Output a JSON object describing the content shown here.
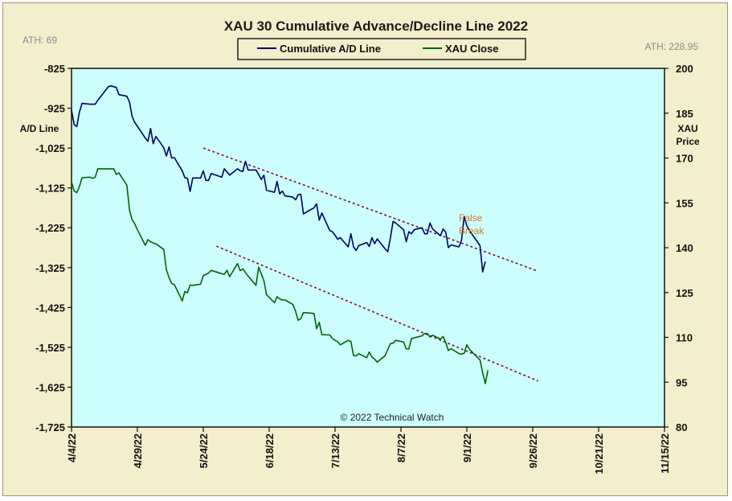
{
  "chart_data": {
    "type": "line",
    "title": "XAU 30 Cumulative Advance/Decline Line 2022",
    "ath_left": "ATH: 69",
    "ath_right": "ATH: 228.95",
    "ylabel_left": "A/D Line",
    "ylabel_right": [
      "XAU",
      "Price"
    ],
    "annotation": [
      "False",
      "Break"
    ],
    "copyright": "© 2022 Technical Watch",
    "legend_placement": "top-center",
    "grid": false,
    "colors": {
      "background": "#f3eecb",
      "plot_bg": "#ccfefe",
      "ad_line": "#000066",
      "xau_close": "#006600",
      "trendline": "#8b0a2e",
      "annotation": "#d9771c"
    },
    "x_ticks": [
      "4/4/22",
      "4/29/22",
      "5/24/22",
      "6/18/22",
      "7/13/22",
      "8/7/22",
      "9/1/22",
      "9/26/22",
      "10/21/22",
      "11/15/22"
    ],
    "y_left": {
      "ticks": [
        "-825",
        "-925",
        "-1,025",
        "-1,125",
        "-1,225",
        "-1,325",
        "-1,425",
        "-1,525",
        "-1,625",
        "-1,725"
      ],
      "range": [
        -1725,
        -825
      ]
    },
    "y_right": {
      "ticks": [
        "200",
        "185",
        "170",
        "155",
        "140",
        "125",
        "110",
        "95",
        "80"
      ],
      "range": [
        80,
        200
      ]
    },
    "series": [
      {
        "name": "Cumulative A/D Line",
        "axis": "left",
        "points": [
          [
            "2022-04-04",
            -930
          ],
          [
            "2022-04-05",
            -966
          ],
          [
            "2022-04-06",
            -971
          ],
          [
            "2022-04-07",
            -935
          ],
          [
            "2022-04-08",
            -913
          ],
          [
            "2022-04-11",
            -915
          ],
          [
            "2022-04-12",
            -915
          ],
          [
            "2022-04-13",
            -915
          ],
          [
            "2022-04-14",
            -905
          ],
          [
            "2022-04-18",
            -871
          ],
          [
            "2022-04-19",
            -869
          ],
          [
            "2022-04-20",
            -871
          ],
          [
            "2022-04-21",
            -873
          ],
          [
            "2022-04-22",
            -891
          ],
          [
            "2022-04-25",
            -895
          ],
          [
            "2022-04-26",
            -910
          ],
          [
            "2022-04-27",
            -945
          ],
          [
            "2022-04-28",
            -961
          ],
          [
            "2022-04-29",
            -970
          ],
          [
            "2022-05-02",
            -1000
          ],
          [
            "2022-05-03",
            -1008
          ],
          [
            "2022-05-04",
            -976
          ],
          [
            "2022-05-05",
            -1014
          ],
          [
            "2022-05-06",
            -996
          ],
          [
            "2022-05-09",
            -1024
          ],
          [
            "2022-05-10",
            -1045
          ],
          [
            "2022-05-11",
            -1022
          ],
          [
            "2022-05-12",
            -1050
          ],
          [
            "2022-05-13",
            -1049
          ],
          [
            "2022-05-16",
            -1082
          ],
          [
            "2022-05-17",
            -1099
          ],
          [
            "2022-05-18",
            -1101
          ],
          [
            "2022-05-19",
            -1134
          ],
          [
            "2022-05-20",
            -1100
          ],
          [
            "2022-05-23",
            -1100
          ],
          [
            "2022-05-24",
            -1082
          ],
          [
            "2022-05-25",
            -1106
          ],
          [
            "2022-05-26",
            -1106
          ],
          [
            "2022-05-27",
            -1089
          ],
          [
            "2022-05-31",
            -1098
          ],
          [
            "2022-06-01",
            -1077
          ],
          [
            "2022-06-02",
            -1085
          ],
          [
            "2022-06-03",
            -1093
          ],
          [
            "2022-06-06",
            -1077
          ],
          [
            "2022-06-07",
            -1082
          ],
          [
            "2022-06-08",
            -1084
          ],
          [
            "2022-06-09",
            -1058
          ],
          [
            "2022-06-10",
            -1080
          ],
          [
            "2022-06-13",
            -1080
          ],
          [
            "2022-06-14",
            -1091
          ],
          [
            "2022-06-15",
            -1104
          ],
          [
            "2022-06-16",
            -1093
          ],
          [
            "2022-06-17",
            -1131
          ],
          [
            "2022-06-20",
            -1136
          ],
          [
            "2022-06-21",
            -1109
          ],
          [
            "2022-06-22",
            -1140
          ],
          [
            "2022-06-23",
            -1133
          ],
          [
            "2022-06-24",
            -1145
          ],
          [
            "2022-06-27",
            -1148
          ],
          [
            "2022-06-28",
            -1155
          ],
          [
            "2022-06-29",
            -1142
          ],
          [
            "2022-06-30",
            -1141
          ],
          [
            "2022-07-01",
            -1190
          ],
          [
            "2022-07-05",
            -1175
          ],
          [
            "2022-07-06",
            -1165
          ],
          [
            "2022-07-07",
            -1206
          ],
          [
            "2022-07-08",
            -1188
          ],
          [
            "2022-07-11",
            -1232
          ],
          [
            "2022-07-12",
            -1235
          ],
          [
            "2022-07-13",
            -1244
          ],
          [
            "2022-07-14",
            -1254
          ],
          [
            "2022-07-15",
            -1250
          ],
          [
            "2022-07-18",
            -1273
          ],
          [
            "2022-07-19",
            -1240
          ],
          [
            "2022-07-20",
            -1273
          ],
          [
            "2022-07-21",
            -1282
          ],
          [
            "2022-07-22",
            -1270
          ],
          [
            "2022-07-25",
            -1262
          ],
          [
            "2022-07-26",
            -1272
          ],
          [
            "2022-07-27",
            -1250
          ],
          [
            "2022-07-28",
            -1265
          ],
          [
            "2022-07-29",
            -1253
          ],
          [
            "2022-08-01",
            -1278
          ],
          [
            "2022-08-02",
            -1285
          ],
          [
            "2022-08-03",
            -1250
          ],
          [
            "2022-08-04",
            -1209
          ],
          [
            "2022-08-05",
            -1213
          ],
          [
            "2022-08-08",
            -1230
          ],
          [
            "2022-08-09",
            -1260
          ],
          [
            "2022-08-10",
            -1235
          ],
          [
            "2022-08-11",
            -1240
          ],
          [
            "2022-08-12",
            -1230
          ],
          [
            "2022-08-15",
            -1225
          ],
          [
            "2022-08-16",
            -1240
          ],
          [
            "2022-08-17",
            -1240
          ],
          [
            "2022-08-18",
            -1213
          ],
          [
            "2022-08-19",
            -1228
          ],
          [
            "2022-08-22",
            -1245
          ],
          [
            "2022-08-23",
            -1228
          ],
          [
            "2022-08-24",
            -1236
          ],
          [
            "2022-08-25",
            -1275
          ],
          [
            "2022-08-26",
            -1268
          ],
          [
            "2022-08-29",
            -1273
          ],
          [
            "2022-08-30",
            -1256
          ],
          [
            "2022-08-31",
            -1197
          ],
          [
            "2022-09-01",
            -1220
          ],
          [
            "2022-09-02",
            -1232
          ],
          [
            "2022-09-06",
            -1270
          ],
          [
            "2022-09-07",
            -1336
          ],
          [
            "2022-09-08",
            -1310
          ]
        ]
      },
      {
        "name": "XAU Close",
        "axis": "right",
        "points": [
          [
            "2022-04-04",
            162.0
          ],
          [
            "2022-04-05",
            159.0
          ],
          [
            "2022-04-06",
            158.4
          ],
          [
            "2022-04-07",
            160.4
          ],
          [
            "2022-04-08",
            163.4
          ],
          [
            "2022-04-11",
            163.6
          ],
          [
            "2022-04-12",
            163.2
          ],
          [
            "2022-04-13",
            163.6
          ],
          [
            "2022-04-14",
            166.4
          ],
          [
            "2022-04-18",
            166.4
          ],
          [
            "2022-04-19",
            166.4
          ],
          [
            "2022-04-20",
            166.4
          ],
          [
            "2022-04-21",
            164.5
          ],
          [
            "2022-04-22",
            165.0
          ],
          [
            "2022-04-25",
            160.9
          ],
          [
            "2022-04-26",
            152.5
          ],
          [
            "2022-04-27",
            149.4
          ],
          [
            "2022-04-28",
            148.0
          ],
          [
            "2022-04-29",
            146.0
          ],
          [
            "2022-05-02",
            140.8
          ],
          [
            "2022-05-03",
            142.7
          ],
          [
            "2022-05-04",
            142.0
          ],
          [
            "2022-05-05",
            141.6
          ],
          [
            "2022-05-06",
            141.3
          ],
          [
            "2022-05-09",
            139.4
          ],
          [
            "2022-05-10",
            132.6
          ],
          [
            "2022-05-11",
            130.0
          ],
          [
            "2022-05-12",
            128.0
          ],
          [
            "2022-05-13",
            127.7
          ],
          [
            "2022-05-16",
            122.2
          ],
          [
            "2022-05-17",
            125.3
          ],
          [
            "2022-05-18",
            124.9
          ],
          [
            "2022-05-19",
            127.5
          ],
          [
            "2022-05-20",
            127.4
          ],
          [
            "2022-05-23",
            127.8
          ],
          [
            "2022-05-24",
            130.7
          ],
          [
            "2022-05-25",
            131.1
          ],
          [
            "2022-05-26",
            131.5
          ],
          [
            "2022-05-27",
            132.4
          ],
          [
            "2022-05-31",
            131.3
          ],
          [
            "2022-06-01",
            131.1
          ],
          [
            "2022-06-02",
            132.4
          ],
          [
            "2022-06-03",
            130.3
          ],
          [
            "2022-06-06",
            134.7
          ],
          [
            "2022-06-07",
            132.3
          ],
          [
            "2022-06-08",
            132.9
          ],
          [
            "2022-06-09",
            131.7
          ],
          [
            "2022-06-10",
            130.5
          ],
          [
            "2022-06-13",
            127.4
          ],
          [
            "2022-06-14",
            133.5
          ],
          [
            "2022-06-15",
            131.2
          ],
          [
            "2022-06-16",
            129.0
          ],
          [
            "2022-06-17",
            124.3
          ],
          [
            "2022-06-20",
            121.6
          ],
          [
            "2022-06-21",
            123.6
          ],
          [
            "2022-06-22",
            122.9
          ],
          [
            "2022-06-23",
            122.5
          ],
          [
            "2022-06-24",
            122.5
          ],
          [
            "2022-06-27",
            121.0
          ],
          [
            "2022-06-28",
            118.8
          ],
          [
            "2022-06-29",
            115.7
          ],
          [
            "2022-06-30",
            116.3
          ],
          [
            "2022-07-01",
            118.3
          ],
          [
            "2022-07-05",
            118.0
          ],
          [
            "2022-07-06",
            112.9
          ],
          [
            "2022-07-07",
            115.0
          ],
          [
            "2022-07-08",
            110.9
          ],
          [
            "2022-07-11",
            110.8
          ],
          [
            "2022-07-12",
            109.6
          ],
          [
            "2022-07-13",
            109.0
          ],
          [
            "2022-07-14",
            108.5
          ],
          [
            "2022-07-15",
            107.5
          ],
          [
            "2022-07-18",
            109.0
          ],
          [
            "2022-07-19",
            108.6
          ],
          [
            "2022-07-20",
            103.9
          ],
          [
            "2022-07-21",
            103.8
          ],
          [
            "2022-07-22",
            104.5
          ],
          [
            "2022-07-25",
            103.2
          ],
          [
            "2022-07-26",
            105.1
          ],
          [
            "2022-07-27",
            103.4
          ],
          [
            "2022-07-28",
            102.7
          ],
          [
            "2022-07-29",
            101.7
          ],
          [
            "2022-08-01",
            103.9
          ],
          [
            "2022-08-02",
            106.0
          ],
          [
            "2022-08-03",
            107.9
          ],
          [
            "2022-08-04",
            108.0
          ],
          [
            "2022-08-05",
            109.0
          ],
          [
            "2022-08-08",
            108.4
          ],
          [
            "2022-08-09",
            106.1
          ],
          [
            "2022-08-10",
            106.1
          ],
          [
            "2022-08-11",
            109.6
          ],
          [
            "2022-08-12",
            109.8
          ],
          [
            "2022-08-15",
            110.5
          ],
          [
            "2022-08-16",
            111.3
          ],
          [
            "2022-08-17",
            111.3
          ],
          [
            "2022-08-18",
            110.1
          ],
          [
            "2022-08-19",
            110.7
          ],
          [
            "2022-08-22",
            109.4
          ],
          [
            "2022-08-23",
            110.3
          ],
          [
            "2022-08-24",
            108.2
          ],
          [
            "2022-08-25",
            105.6
          ],
          [
            "2022-08-26",
            106.2
          ],
          [
            "2022-08-29",
            104.6
          ],
          [
            "2022-08-30",
            104.4
          ],
          [
            "2022-08-31",
            104.7
          ],
          [
            "2022-09-01",
            107.5
          ],
          [
            "2022-09-02",
            106.0
          ],
          [
            "2022-09-06",
            102.4
          ],
          [
            "2022-09-07",
            98.1
          ],
          [
            "2022-09-08",
            94.5
          ],
          [
            "2022-09-09",
            99.0
          ]
        ]
      }
    ],
    "trendlines": [
      {
        "axis": "left",
        "from": [
          "2022-05-24",
          -1025
        ],
        "to": [
          "2022-09-28",
          -1334
        ]
      },
      {
        "axis": "right",
        "from": [
          "2022-05-29",
          140.5
        ],
        "to": [
          "2022-09-28",
          95.4
        ]
      }
    ]
  }
}
